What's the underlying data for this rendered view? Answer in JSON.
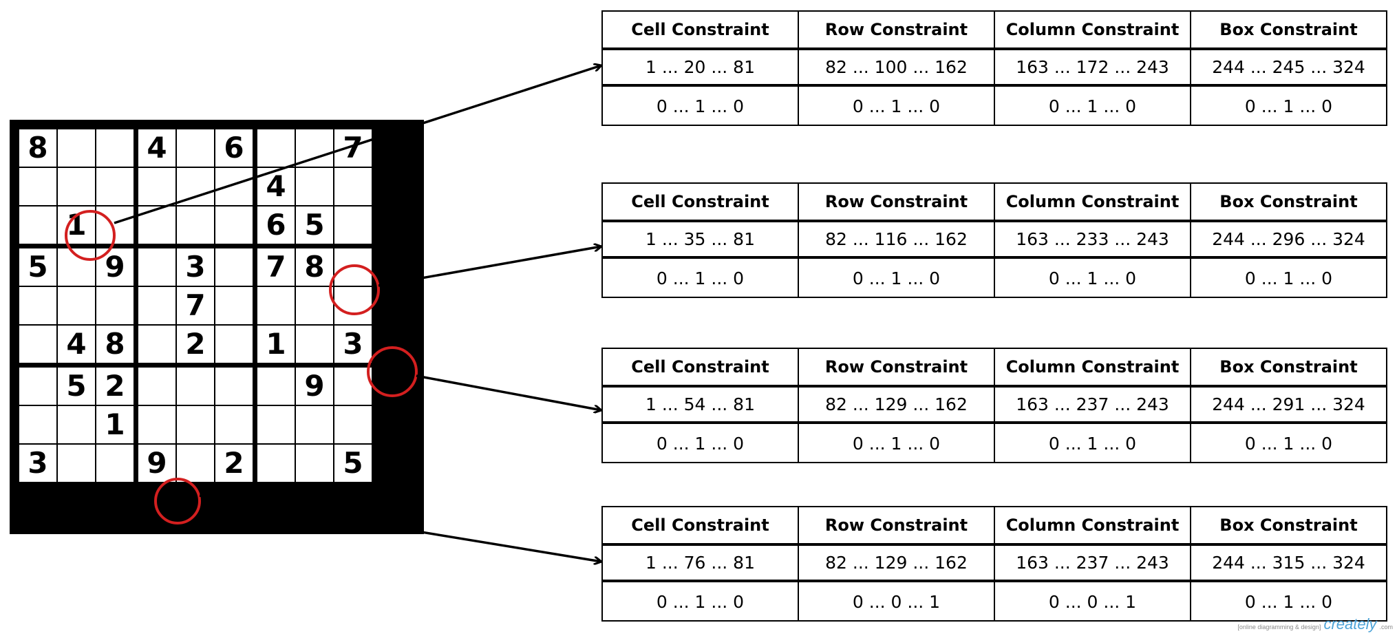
{
  "sudoku": {
    "grid": [
      [
        "8",
        "",
        "",
        "4",
        "",
        "6",
        "",
        "",
        "7"
      ],
      [
        "",
        "",
        "",
        "",
        "",
        "",
        "4",
        "",
        ""
      ],
      [
        "",
        "1",
        "",
        "",
        "",
        "",
        "6",
        "5",
        ""
      ],
      [
        "5",
        "",
        "9",
        "",
        "3",
        "",
        "7",
        "8",
        ""
      ],
      [
        "",
        "",
        "",
        "",
        "7",
        "",
        "",
        "",
        ""
      ],
      [
        "",
        "4",
        "8",
        "",
        "2",
        "",
        "1",
        "",
        "3"
      ],
      [
        "",
        "5",
        "2",
        "",
        "",
        "",
        "",
        "9",
        ""
      ],
      [
        "",
        "",
        "1",
        "",
        "",
        "",
        "",
        "",
        ""
      ],
      [
        "3",
        "",
        "",
        "9",
        "",
        "2",
        "",
        "",
        "5"
      ]
    ],
    "circle_color": "#d31f1f"
  },
  "tables": [
    {
      "headers": [
        "Cell Constraint",
        "Row Constraint",
        "Column Constraint",
        "Box Constraint"
      ],
      "ranges": [
        "1 ... 20 ... 81",
        "82 ... 100 ... 162",
        "163 ... 172 ... 243",
        "244 ... 245 ... 324"
      ],
      "bits": [
        "0 ... 1 ... 0",
        "0 ... 1 ... 0",
        "0 ... 1 ... 0",
        "0 ... 1 ... 0"
      ]
    },
    {
      "headers": [
        "Cell Constraint",
        "Row Constraint",
        "Column Constraint",
        "Box Constraint"
      ],
      "ranges": [
        "1 ... 35 ... 81",
        "82 ... 116 ... 162",
        "163 ... 233 ... 243",
        "244 ... 296 ... 324"
      ],
      "bits": [
        "0 ... 1 ... 0",
        "0 ... 1 ... 0",
        "0 ... 1 ... 0",
        "0 ... 1 ... 0"
      ]
    },
    {
      "headers": [
        "Cell Constraint",
        "Row Constraint",
        "Column Constraint",
        "Box Constraint"
      ],
      "ranges": [
        "1 ... 54 ... 81",
        "82 ... 129 ... 162",
        "163 ... 237 ... 243",
        "244 ... 291 ... 324"
      ],
      "bits": [
        "0 ... 1 ... 0",
        "0 ... 1 ... 0",
        "0 ... 1 ... 0",
        "0 ... 1 ... 0"
      ]
    },
    {
      "headers": [
        "Cell Constraint",
        "Row Constraint",
        "Column Constraint",
        "Box Constraint"
      ],
      "ranges": [
        "1 ... 76 ... 81",
        "82 ... 129 ... 162",
        "163 ... 237 ... 243",
        "244 ... 315 ... 324"
      ],
      "bits": [
        "0 ... 1 ... 0",
        "0 ... 0 ... 1",
        "0 ... 0 ... 1",
        "0 ... 1 ... 0"
      ]
    }
  ],
  "watermark": {
    "tagline": "[online diagramming & design]",
    "brand": "creately",
    "suffix": ".com"
  }
}
